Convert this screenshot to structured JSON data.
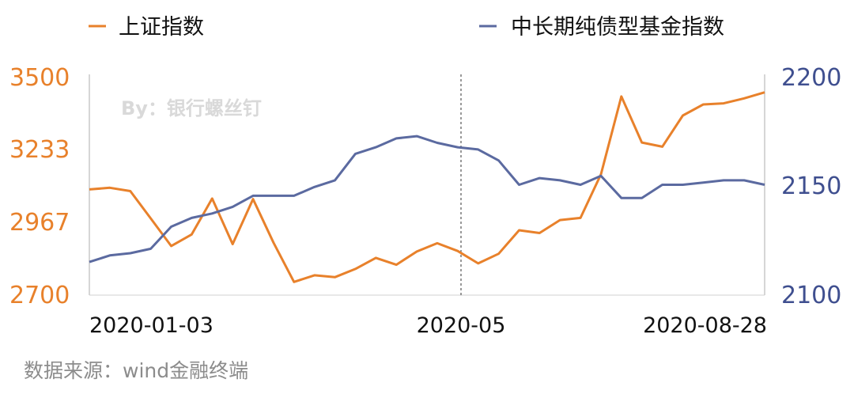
{
  "chart_data": {
    "type": "line",
    "legend": [
      {
        "name": "上证指数",
        "color": "#E8812B",
        "axis": "left"
      },
      {
        "name": "中长期纯债型基金指数",
        "color": "#5B6AA0",
        "axis": "right"
      }
    ],
    "legend_position": "top",
    "x_tick_labels": [
      "2020-01-03",
      "2020-05",
      "2020-08-28"
    ],
    "left_axis": {
      "ylim": [
        2700,
        3500
      ],
      "ticks": [
        "3500",
        "3233",
        "2967",
        "2700"
      ],
      "color": "#E8812B"
    },
    "right_axis": {
      "ylim": [
        2100,
        2200
      ],
      "ticks": [
        "2200",
        "2150",
        "2100"
      ],
      "color": "#3F4F8F"
    },
    "marker_line": {
      "label_index": 1,
      "style": "dotted"
    },
    "series": [
      {
        "name": "上证指数",
        "axis": "left",
        "color": "#E8812B",
        "values": [
          3083,
          3089,
          3077,
          2978,
          2878,
          2920,
          3050,
          2885,
          3048,
          2890,
          2748,
          2772,
          2765,
          2795,
          2835,
          2810,
          2858,
          2888,
          2860,
          2815,
          2850,
          2935,
          2925,
          2972,
          2980,
          3138,
          3420,
          3253,
          3238,
          3351,
          3391,
          3395,
          3413,
          3435
        ]
      },
      {
        "name": "中长期纯债型基金指数",
        "axis": "right",
        "color": "#5B6AA0",
        "values": [
          2115,
          2118,
          2119,
          2121,
          2131,
          2135,
          2137,
          2140,
          2145,
          2145,
          2145,
          2149,
          2152,
          2164,
          2167,
          2171,
          2172,
          2169,
          2167,
          2166,
          2161,
          2150,
          2153,
          2152,
          2150,
          2154,
          2144,
          2144,
          2150,
          2150,
          2151,
          2152,
          2152,
          2150
        ]
      }
    ],
    "watermark": "By：银行螺丝钉",
    "source": "数据来源：wind金融终端"
  }
}
